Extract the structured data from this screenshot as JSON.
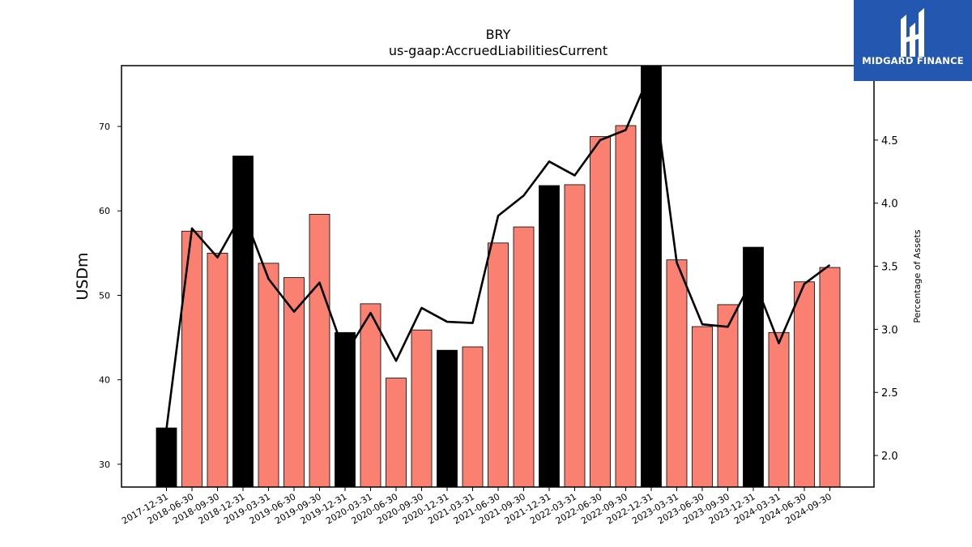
{
  "logo": {
    "text": "MIDGARD FINANCE",
    "bg_color": "#2457b0"
  },
  "chart_data": {
    "type": "bar",
    "title": "BRY",
    "subtitle": "us-gaap:AccruedLiabilitiesCurrent",
    "ylabel": "USDm",
    "y2label": "Percentage of Assets",
    "ylim": [
      27.3,
      77.2
    ],
    "y2lim": [
      1.75,
      5.09
    ],
    "yticks": [
      30,
      40,
      50,
      60,
      70
    ],
    "y2ticks": [
      2.0,
      2.5,
      3.0,
      3.5,
      4.0,
      4.5
    ],
    "categories": [
      "2017-12-31",
      "2018-06-30",
      "2018-09-30",
      "2018-12-31",
      "2019-03-31",
      "2019-06-30",
      "2019-09-30",
      "2019-12-31",
      "2020-03-31",
      "2020-06-30",
      "2020-09-30",
      "2020-12-31",
      "2021-03-31",
      "2021-06-30",
      "2021-09-30",
      "2021-12-31",
      "2022-03-31",
      "2022-06-30",
      "2022-09-30",
      "2022-12-31",
      "2023-03-31",
      "2023-06-30",
      "2023-09-30",
      "2023-12-31",
      "2024-03-31",
      "2024-06-30",
      "2024-09-30"
    ],
    "values": [
      34.3,
      57.6,
      55.0,
      66.5,
      53.8,
      52.1,
      59.6,
      45.6,
      49.0,
      40.2,
      45.9,
      43.5,
      43.9,
      56.2,
      58.1,
      63.0,
      63.1,
      68.8,
      70.1,
      77.2,
      54.2,
      46.3,
      48.9,
      55.7,
      45.6,
      51.6,
      53.3
    ],
    "highlight": [
      true,
      false,
      false,
      true,
      false,
      false,
      false,
      true,
      false,
      false,
      false,
      true,
      false,
      false,
      false,
      true,
      false,
      false,
      false,
      true,
      false,
      false,
      false,
      true,
      false,
      false,
      false
    ],
    "line_values": [
      2.21,
      3.8,
      3.57,
      3.93,
      3.4,
      3.14,
      3.37,
      2.8,
      3.13,
      2.75,
      3.17,
      3.06,
      3.05,
      3.9,
      4.06,
      4.33,
      4.22,
      4.5,
      4.58,
      5.05,
      3.53,
      3.04,
      3.02,
      3.41,
      2.89,
      3.36,
      3.51
    ],
    "colors": {
      "bar": "#fa8072",
      "bar_highlight": "#000000",
      "line": "#000000"
    },
    "grid": false
  }
}
